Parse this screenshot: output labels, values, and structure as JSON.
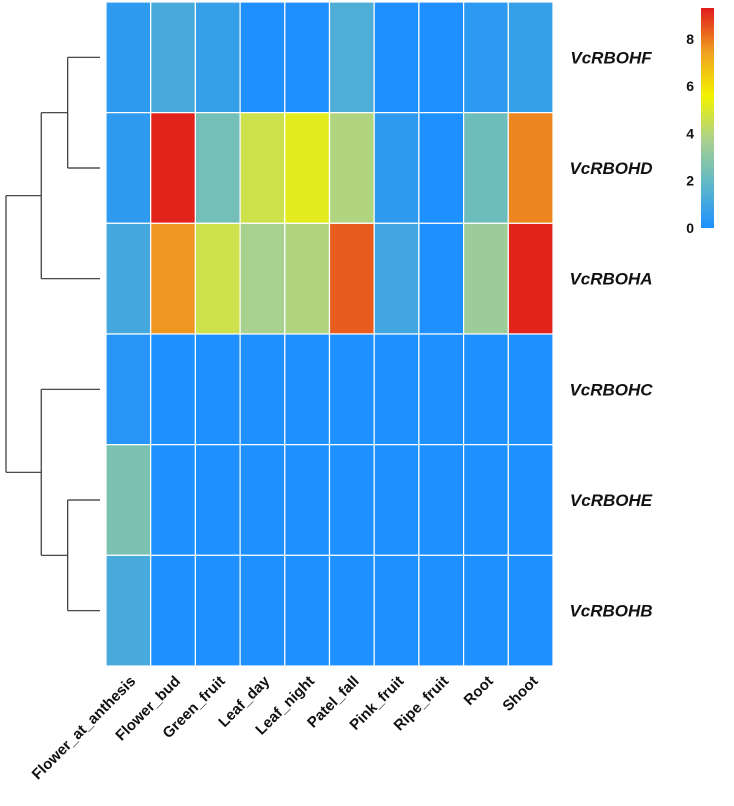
{
  "chart_data": {
    "type": "heatmap",
    "title": "",
    "columns": [
      "Flower_at_anthesis",
      "Flower_bud",
      "Green_fruit",
      "Leaf_day",
      "Leaf_night",
      "Patel_fall",
      "Pink_fruit",
      "Ripe_fruit",
      "Root",
      "Shoot"
    ],
    "rows": [
      "VcRBOHF",
      "VcRBOHD",
      "VcRBOHA",
      "VcRBOHC",
      "VcRBOHE",
      "VcRBOHB"
    ],
    "values": [
      [
        0.5,
        1.2,
        0.7,
        0.0,
        0.0,
        1.4,
        0.0,
        0.0,
        0.4,
        0.7
      ],
      [
        0.5,
        9.2,
        2.4,
        4.6,
        5.2,
        3.9,
        0.5,
        0.0,
        2.2,
        7.8
      ],
      [
        1.1,
        7.6,
        4.6,
        3.7,
        3.9,
        8.4,
        1.0,
        0.0,
        3.4,
        9.2
      ],
      [
        0.3,
        0.0,
        0.0,
        0.0,
        0.0,
        0.0,
        0.0,
        0.0,
        0.0,
        0.0
      ],
      [
        2.6,
        0.0,
        0.0,
        0.0,
        0.0,
        0.0,
        0.0,
        0.0,
        0.0,
        0.0
      ],
      [
        1.2,
        0.0,
        0.0,
        0.0,
        0.0,
        0.0,
        0.0,
        0.0,
        0.0,
        0.0
      ]
    ],
    "colorbar": {
      "range": [
        0,
        9.3
      ],
      "ticks": [
        "0",
        "2",
        "4",
        "6",
        "8"
      ],
      "tick_values": [
        0,
        2,
        4,
        6,
        8
      ],
      "colors": [
        "#1e90ff",
        "#5fb8c8",
        "#a9d18e",
        "#f3f300",
        "#f0a020",
        "#e01c1c"
      ]
    },
    "dendrogram": {
      "side": "left",
      "leaf_order": [
        "VcRBOHF",
        "VcRBOHD",
        "VcRBOHA",
        "VcRBOHC",
        "VcRBOHE",
        "VcRBOHB"
      ],
      "merges": [
        {
          "members": [
            "VcRBOHF",
            "VcRBOHD"
          ],
          "height": 0.55
        },
        {
          "members": [
            "VcRBOHE",
            "VcRBOHB"
          ],
          "height": 0.55
        },
        {
          "members": [
            "VcRBOHF",
            "VcRBOHD",
            "VcRBOHA"
          ],
          "height": 1.0
        },
        {
          "members": [
            "VcRBOHC",
            "VcRBOHE",
            "VcRBOHB"
          ],
          "height": 1.0
        },
        {
          "members": [
            "VcRBOHF",
            "VcRBOHD",
            "VcRBOHA",
            "VcRBOHC",
            "VcRBOHE",
            "VcRBOHB"
          ],
          "height": 1.6
        }
      ]
    }
  }
}
